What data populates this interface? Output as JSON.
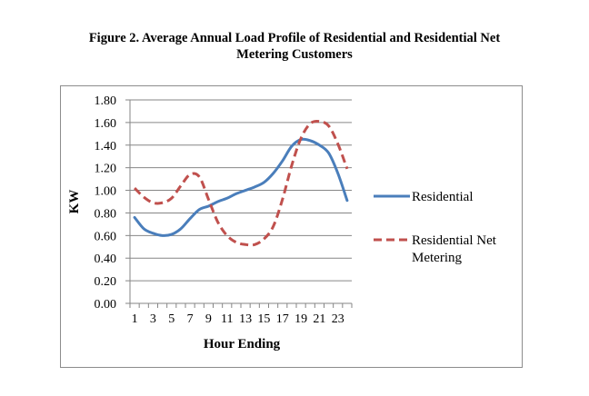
{
  "figure": {
    "title_line1": "Figure 2. Average Annual Load Profile of Residential and Residential Net",
    "title_line2": "Metering Customers"
  },
  "chart_data": {
    "type": "line",
    "title": "Figure 2. Average Annual Load Profile of Residential and Residential Net Metering Customers",
    "xlabel": "Hour Ending",
    "ylabel": "KW",
    "ylim": [
      0,
      1.8
    ],
    "y_ticks": [
      "0.00",
      "0.20",
      "0.40",
      "0.60",
      "0.80",
      "1.00",
      "1.20",
      "1.40",
      "1.60",
      "1.80"
    ],
    "x_ticks": [
      "1",
      "3",
      "5",
      "7",
      "9",
      "11",
      "13",
      "15",
      "17",
      "19",
      "21",
      "23"
    ],
    "x": [
      1,
      2,
      3,
      4,
      5,
      6,
      7,
      8,
      9,
      10,
      11,
      12,
      13,
      14,
      15,
      16,
      17,
      18,
      19,
      20,
      21,
      22,
      23,
      24
    ],
    "grid": "horizontal",
    "legend_position": "right",
    "series": [
      {
        "name": "Residential",
        "color": "#4a7ebb",
        "style": "solid",
        "values": [
          0.76,
          0.66,
          0.62,
          0.6,
          0.61,
          0.66,
          0.75,
          0.83,
          0.86,
          0.9,
          0.93,
          0.97,
          1.0,
          1.03,
          1.07,
          1.15,
          1.26,
          1.39,
          1.45,
          1.44,
          1.4,
          1.33,
          1.15,
          0.91
        ]
      },
      {
        "name": "Residential Net Metering",
        "legend_lines": [
          "Residential Net",
          "Metering"
        ],
        "color": "#c0504d",
        "style": "dashed",
        "values": [
          1.02,
          0.94,
          0.89,
          0.89,
          0.93,
          1.04,
          1.14,
          1.12,
          0.92,
          0.72,
          0.6,
          0.54,
          0.52,
          0.52,
          0.57,
          0.68,
          0.92,
          1.22,
          1.46,
          1.59,
          1.61,
          1.57,
          1.41,
          1.19
        ]
      }
    ]
  }
}
